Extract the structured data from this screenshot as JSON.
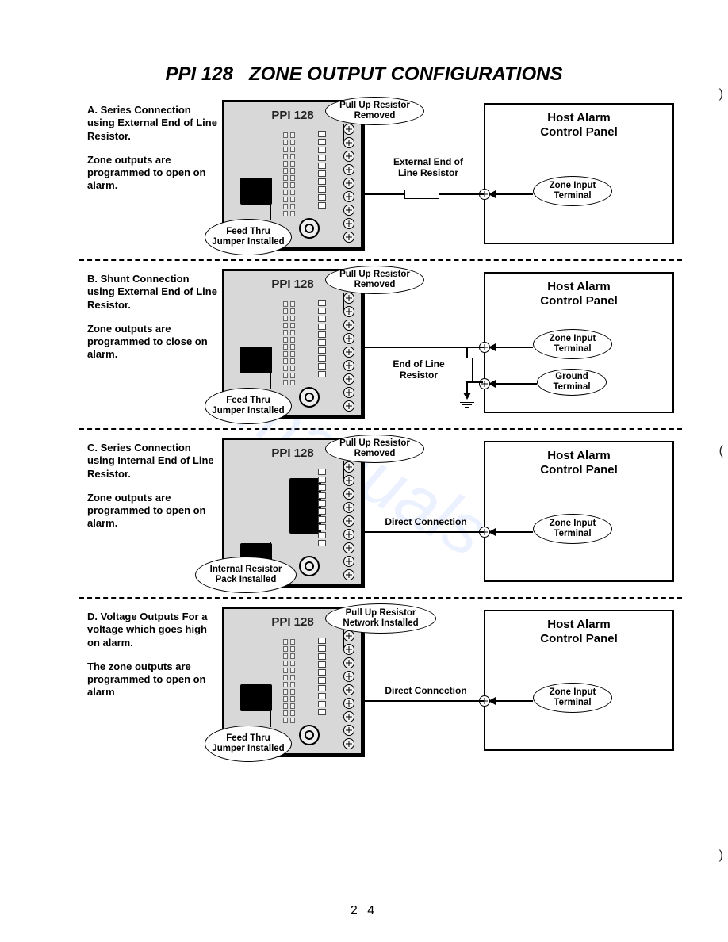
{
  "title_prefix": "PPI 128",
  "title_main": "ZONE OUTPUT CONFIGURATIONS",
  "page_number": "2 4",
  "device_label": "PPI 128",
  "host_title_line1": "Host Alarm",
  "host_title_line2": "Control Panel",
  "zone_input_label": "Zone Input Terminal",
  "ground_label": "Ground Terminal",
  "bubble_pullup_removed": "Pull Up Resistor Removed",
  "bubble_pullup_installed": "Pull Up Resistor Network Installed",
  "bubble_jumper_feed": "Feed Thru Jumper Installed",
  "bubble_internal_resistor": "Internal Resistor Pack Installed",
  "mid_external_eol": "External End of Line Resistor",
  "mid_eol": "End of Line Resistor",
  "mid_direct": "Direct Connection",
  "configs": [
    {
      "id": "A",
      "desc1": "A.  Series Connection using External End of Line Resistor.",
      "desc2": "Zone outputs are programmed to open on alarm.",
      "pullup": "removed",
      "jumper": "feed",
      "mid_type": "external_eol_inline",
      "extra_ground": false
    },
    {
      "id": "B",
      "desc1": "B.  Shunt Connection using External End of Line Resistor.",
      "desc2": "Zone outputs are programmed to close on alarm.",
      "pullup": "removed",
      "jumper": "feed",
      "mid_type": "eol_shunt",
      "extra_ground": true
    },
    {
      "id": "C",
      "desc1": "C.  Series Connection using Internal End of Line Resistor.",
      "desc2": "Zone outputs are programmed to open on alarm.",
      "pullup": "removed",
      "jumper": "internal",
      "mid_type": "direct",
      "extra_ground": false
    },
    {
      "id": "D",
      "desc1": "D.  Voltage Outputs For a voltage which goes high on alarm.",
      "desc2": "The zone outputs are programmed to open on alarm",
      "pullup": "installed",
      "jumper": "feed",
      "mid_type": "direct",
      "extra_ground": false
    }
  ],
  "colors": {
    "device_bg": "#d8d8d8",
    "line": "#000000",
    "page_bg": "#ffffff"
  }
}
